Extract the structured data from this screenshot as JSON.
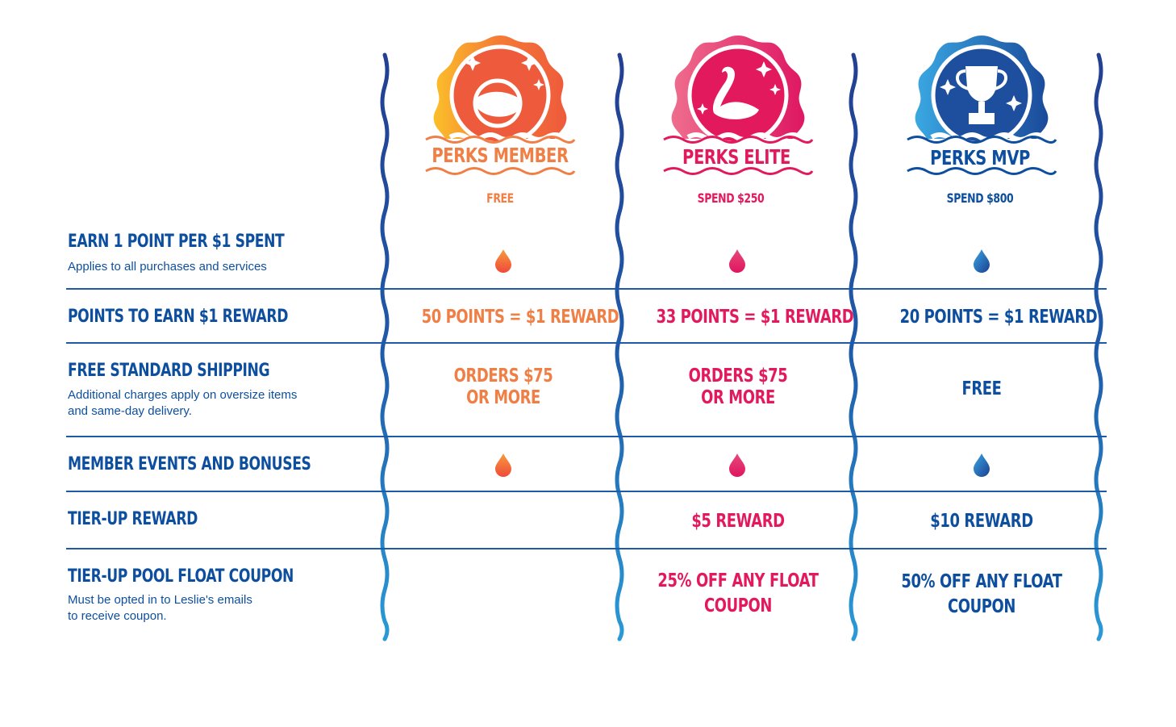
{
  "tiers": [
    {
      "name": "PERKS MEMBER",
      "spend": "FREE",
      "color": "#f07f46",
      "icon": "beach-ball-icon"
    },
    {
      "name": "PERKS ELITE",
      "spend": "SPEND $250",
      "color": "#e3195e",
      "icon": "flamingo-float-icon"
    },
    {
      "name": "PERKS MVP",
      "spend": "SPEND $800",
      "color": "#0d4f9e",
      "icon": "trophy-icon"
    }
  ],
  "rows": [
    {
      "title": "EARN 1 POINT PER $1 SPENT",
      "subtitle": "Applies to all purchases and services"
    },
    {
      "title": "POINTS TO EARN $1 REWARD",
      "subtitle": ""
    },
    {
      "title": "FREE STANDARD SHIPPING",
      "subtitle": "Additional charges apply on oversize items and same-day delivery."
    },
    {
      "title": "MEMBER EVENTS AND BONUSES",
      "subtitle": ""
    },
    {
      "title": "TIER-UP REWARD",
      "subtitle": ""
    },
    {
      "title": "TIER-UP POOL FLOAT COUPON",
      "subtitle": "Must be opted in to Leslie's emails to receive coupon."
    }
  ],
  "subtitle_lines": {
    "shipping_line1": "Additional charges apply on oversize items",
    "shipping_line2": "and same-day delivery.",
    "coupon_line1": "Must be opted in to Leslie's emails",
    "coupon_line2": "to receive coupon."
  },
  "cells": {
    "points": [
      "50 POINTS = $1 REWARD",
      "33 POINTS = $1 REWARD",
      "20 POINTS = $1 REWARD"
    ],
    "shipping": [
      [
        "ORDERS $75",
        "OR MORE"
      ],
      [
        "ORDERS $75",
        "OR MORE"
      ],
      [
        "FREE"
      ]
    ],
    "tierup_reward": [
      "",
      "$5 REWARD",
      "$10 REWARD"
    ],
    "coupon": [
      [
        "",
        ""
      ],
      [
        "25% OFF ANY FLOAT",
        "COUPON"
      ],
      [
        "50% OFF ANY FLOAT",
        "COUPON"
      ]
    ]
  },
  "colors": {
    "orange": "#f07f46",
    "pink": "#e3195e",
    "blue": "#0d4f9e",
    "light_blue": "#2f9bd6"
  }
}
